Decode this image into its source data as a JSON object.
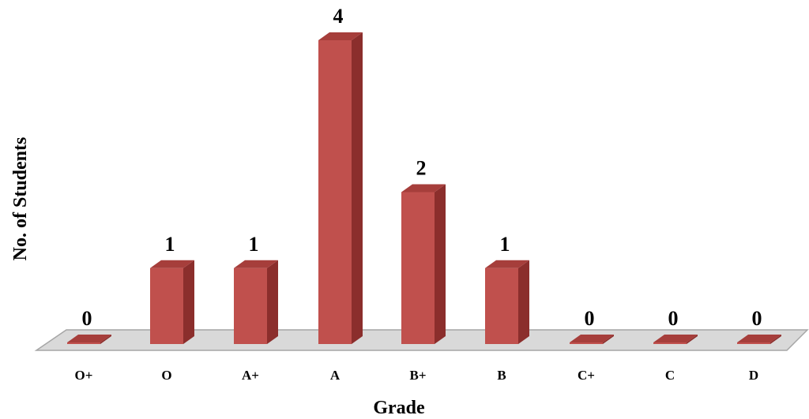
{
  "chart_data": {
    "type": "bar",
    "style": "3d-column",
    "categories": [
      "O+",
      "O",
      "A+",
      "A",
      "B+",
      "B",
      "C+",
      "C",
      "D"
    ],
    "values": [
      0,
      1,
      1,
      4,
      2,
      1,
      0,
      0,
      0
    ],
    "title": "",
    "xlabel": "Grade",
    "ylabel": "No. of Students",
    "ylim": [
      0,
      4
    ],
    "grid": false,
    "legend": "none",
    "data_labels": true,
    "colors": {
      "bar_front": "#C0504D",
      "bar_side": "#8B2E2C",
      "bar_top": "#A63E3B",
      "floor": "#D9D9D9",
      "floor_stroke": "#A6A6A6"
    }
  }
}
